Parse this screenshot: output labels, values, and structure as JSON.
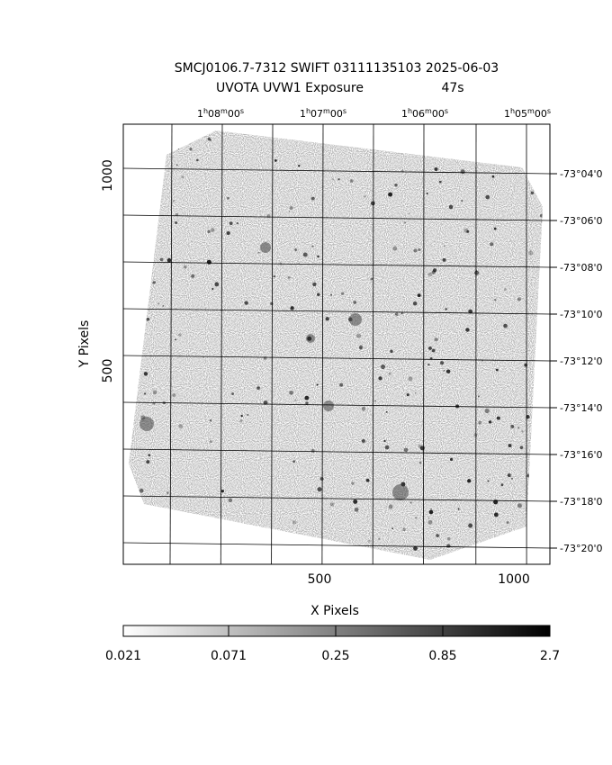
{
  "header": {
    "title": "SMCJ0106.7-7312 SWIFT 03111135103 2025-06-03",
    "subtitle": "UVOTA UVW1 Exposure",
    "exposure": "47s"
  },
  "axes": {
    "x_label": "X Pixels",
    "y_label": "Y Pixels",
    "x_ticks": [
      "500",
      "1000"
    ],
    "y_ticks": [
      "500",
      "1000"
    ],
    "ra_ticks": [
      "1h08m00s",
      "1h07m00s",
      "1h06m00s",
      "1h05m00s"
    ],
    "dec_ticks": [
      "-73°04'0",
      "-73°06'0",
      "-73°08'0",
      "-73°10'0",
      "-73°12'0",
      "-73°14'0",
      "-73°16'0",
      "-73°18'0",
      "-73°20'0"
    ]
  },
  "colorbar": {
    "labels": [
      "0.021",
      "0.071",
      "0.25",
      "0.85",
      "2.7"
    ]
  }
}
